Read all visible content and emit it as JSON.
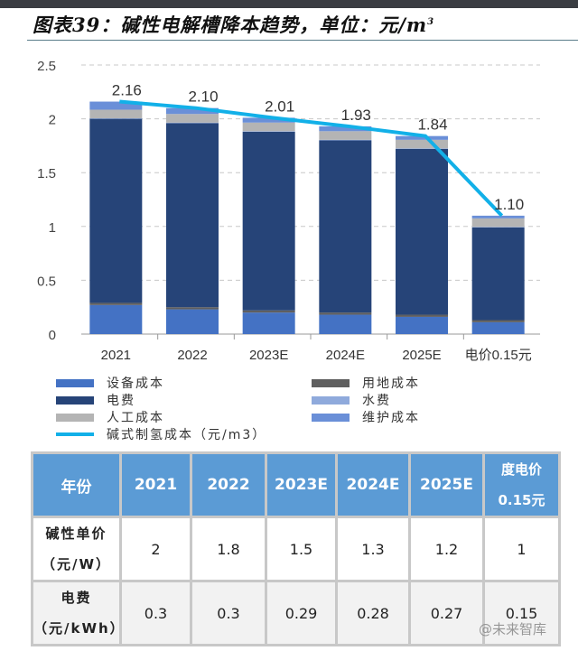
{
  "title": "图表39：碱性电解槽降本趋势，单位：元/m",
  "title_sup": "3",
  "chart_data": {
    "type": "bar",
    "stacked": true,
    "categories": [
      "2021",
      "2022",
      "2023E",
      "2024E",
      "2025E",
      "电价0.15元"
    ],
    "ylim": [
      0,
      2.5
    ],
    "yticks": [
      "0",
      "0.5",
      "1",
      "1.5",
      "2",
      "2.5"
    ],
    "grid": "horizontal dashed",
    "legend_placement": "bottom",
    "series": [
      {
        "name": "设备成本",
        "color": "#4472c4",
        "values": [
          0.27,
          0.23,
          0.2,
          0.18,
          0.16,
          0.11
        ]
      },
      {
        "name": "用地成本",
        "color": "#5f5f5f",
        "values": [
          0.02,
          0.02,
          0.02,
          0.02,
          0.02,
          0.02
        ]
      },
      {
        "name": "电费",
        "color": "#264478",
        "values": [
          1.71,
          1.71,
          1.66,
          1.6,
          1.54,
          0.86
        ]
      },
      {
        "name": "水费",
        "color": "#8faadc",
        "values": [
          0.005,
          0.005,
          0.005,
          0.005,
          0.005,
          0.005
        ]
      },
      {
        "name": "人工成本",
        "color": "#b4b4b4",
        "values": [
          0.08,
          0.08,
          0.08,
          0.08,
          0.08,
          0.08
        ]
      },
      {
        "name": "维护成本",
        "color": "#6a8fd8",
        "values": [
          0.075,
          0.055,
          0.045,
          0.045,
          0.035,
          0.025
        ]
      }
    ],
    "line": {
      "name": "碱式制氢成本（元/m3）",
      "color": "#12b0e8",
      "values": [
        2.16,
        2.1,
        2.01,
        1.93,
        1.84,
        1.1
      ],
      "labels": [
        "2.16",
        "2.10",
        "2.01",
        "1.93",
        "1.84",
        "1.10"
      ]
    }
  },
  "table": {
    "header": [
      "年份",
      "2021",
      "2022",
      "2023E",
      "2024E",
      "2025E",
      "度电价0.15元"
    ],
    "rows": [
      {
        "label": "碱性单价（元/W）",
        "values": [
          "2",
          "1.8",
          "1.5",
          "1.3",
          "1.2",
          "1"
        ]
      },
      {
        "label": "电费（元/kWh）",
        "values": [
          "0.3",
          "0.3",
          "0.29",
          "0.28",
          "0.27",
          "0.15"
        ]
      }
    ]
  },
  "watermark": "@未来智库"
}
